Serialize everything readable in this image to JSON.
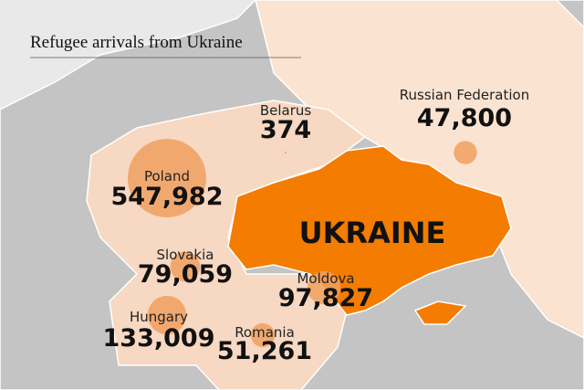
{
  "title": "Refugee arrivals from Ukraine",
  "ukraine_label": "UKRAINE",
  "countries": [
    {
      "name": "Belarus",
      "value": 374,
      "value_label": "374"
    },
    {
      "name": "Russian Federation",
      "value": 47800,
      "value_label": "47,800"
    },
    {
      "name": "Poland",
      "value": 547982,
      "value_label": "547,982"
    },
    {
      "name": "Slovakia",
      "value": 79059,
      "value_label": "79,059"
    },
    {
      "name": "Moldova",
      "value": 97827,
      "value_label": "97,827"
    },
    {
      "name": "Hungary",
      "value": 133009,
      "value_label": "133,009"
    },
    {
      "name": "Romania",
      "value": 51261,
      "value_label": "51,261"
    }
  ]
}
